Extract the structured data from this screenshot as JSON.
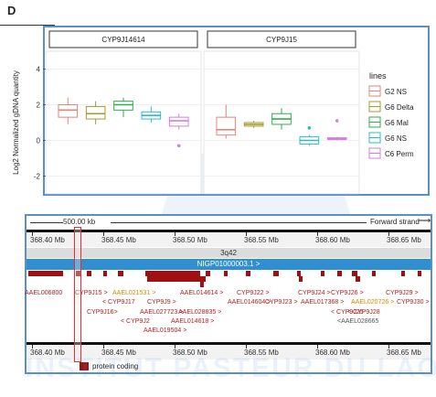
{
  "panel_letter": "D",
  "chart_data": {
    "type": "box",
    "facets": [
      "CYP9J14614",
      "CYP9J15"
    ],
    "ylabel": "Log2 Normalized gDNA quantity",
    "ylim": [
      -3,
      5
    ],
    "yticks": [
      -2,
      0,
      2,
      4
    ],
    "grid": true,
    "legend_title": "lines",
    "legend_position": "right",
    "series": [
      {
        "name": "G2 NS",
        "color": "#e8847a"
      },
      {
        "name": "G6 Delta",
        "color": "#a89a2c"
      },
      {
        "name": "G6 Mal",
        "color": "#2fae4a"
      },
      {
        "name": "G6 NS",
        "color": "#2bbcc6"
      },
      {
        "name": "C6 Perm",
        "color": "#d67ee0"
      }
    ],
    "boxes": [
      {
        "facet": 0,
        "series": 0,
        "min": 0.9,
        "q1": 1.3,
        "median": 1.7,
        "q3": 2.0,
        "max": 2.4,
        "outliers": []
      },
      {
        "facet": 0,
        "series": 1,
        "min": 0.9,
        "q1": 1.2,
        "median": 1.5,
        "q3": 1.9,
        "max": 2.2,
        "outliers": []
      },
      {
        "facet": 0,
        "series": 2,
        "min": 1.3,
        "q1": 1.7,
        "median": 2.0,
        "q3": 2.2,
        "max": 2.4,
        "outliers": []
      },
      {
        "facet": 0,
        "series": 3,
        "min": 1.0,
        "q1": 1.2,
        "median": 1.4,
        "q3": 1.6,
        "max": 1.9,
        "outliers": []
      },
      {
        "facet": 0,
        "series": 4,
        "min": 0.6,
        "q1": 0.8,
        "median": 1.1,
        "q3": 1.3,
        "max": 1.5,
        "outliers": [
          -0.3
        ]
      },
      {
        "facet": 1,
        "series": 0,
        "min": 0.1,
        "q1": 0.3,
        "median": 0.6,
        "q3": 1.3,
        "max": 2.0,
        "outliers": []
      },
      {
        "facet": 1,
        "series": 1,
        "min": 0.7,
        "q1": 0.8,
        "median": 0.9,
        "q3": 1.0,
        "max": 1.1,
        "outliers": []
      },
      {
        "facet": 1,
        "series": 2,
        "min": 0.6,
        "q1": 0.9,
        "median": 1.2,
        "q3": 1.5,
        "max": 1.8,
        "outliers": []
      },
      {
        "facet": 1,
        "series": 3,
        "min": -0.3,
        "q1": -0.2,
        "median": 0.0,
        "q3": 0.2,
        "max": 0.3,
        "outliers": [
          0.7
        ]
      },
      {
        "facet": 1,
        "series": 4,
        "min": 0.0,
        "q1": 0.05,
        "median": 0.1,
        "q3": 0.15,
        "max": 0.2,
        "outliers": [
          1.1
        ]
      }
    ]
  },
  "genome_browser": {
    "scale_label": "500.00 kb",
    "strand_label": "Forward strand",
    "ticks_mb": [
      "368.40 Mb",
      "368.45 Mb",
      "368.50 Mb",
      "368.55 Mb",
      "368.60 Mb",
      "368.65 Mb"
    ],
    "contig_label": "3q42",
    "assembly_label": "NIGP01000003.1 >",
    "genes": [
      {
        "label": "AAEL006800",
        "color": "red"
      },
      {
        "label": "CYP9J15 >",
        "color": "red"
      },
      {
        "label": "AAEL021531 >",
        "color": "orange"
      },
      {
        "label": "< CYP9J17",
        "color": "red"
      },
      {
        "label": "CYP9J16>",
        "color": "red"
      },
      {
        "label": "< CYP9J2",
        "color": "red"
      },
      {
        "label": "CYP9J9 >",
        "color": "red"
      },
      {
        "label": "AAEL027723 >",
        "color": "red"
      },
      {
        "label": "AAEL019504 >",
        "color": "red"
      },
      {
        "label": "AAEL014614 >",
        "color": "red"
      },
      {
        "label": "AAEL028835 >",
        "color": "red"
      },
      {
        "label": "AAEL014618 >",
        "color": "red"
      },
      {
        "label": "CYP9J22 >",
        "color": "red"
      },
      {
        "label": "AAEL014604 >",
        "color": "red"
      },
      {
        "label": "CYP9J23 >",
        "color": "red"
      },
      {
        "label": "CYP9J24 >",
        "color": "red"
      },
      {
        "label": "AAEL017368 >",
        "color": "red"
      },
      {
        "label": "CYP9J26 >",
        "color": "red"
      },
      {
        "label": "< CYP9J25",
        "color": "red"
      },
      {
        "label": "<AAEL028665",
        "color": "grey"
      },
      {
        "label": "AAEL020726 >",
        "color": "orange"
      },
      {
        "label": "< CYP9J28",
        "color": "red"
      },
      {
        "label": "CYP9J29 >",
        "color": "red"
      },
      {
        "label": "CYP9J30 >",
        "color": "red"
      }
    ],
    "legend_label": "protein coding"
  },
  "watermark": "INSTITUT PASTEUR DU LAOS"
}
